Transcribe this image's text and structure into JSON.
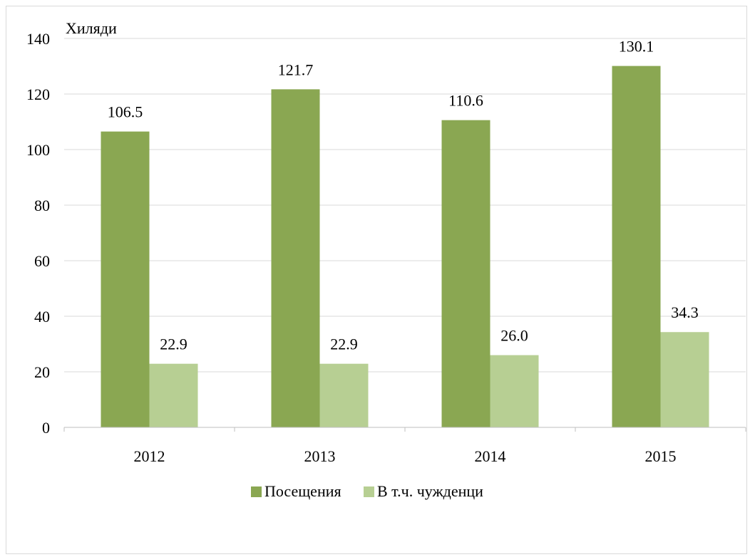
{
  "chart_data": {
    "type": "bar",
    "title": "",
    "ylabel": "Хиляди",
    "xlabel": "",
    "categories": [
      "2012",
      "2013",
      "2014",
      "2015"
    ],
    "ylim": [
      0,
      140
    ],
    "yticks": [
      0,
      20,
      40,
      60,
      80,
      100,
      120,
      140
    ],
    "grid": true,
    "legend_position": "bottom",
    "series": [
      {
        "name": "Посещения",
        "values": [
          106.5,
          121.7,
          110.6,
          130.1
        ],
        "color": "#8aa752"
      },
      {
        "name": "В т.ч. чужденци",
        "values": [
          22.9,
          22.9,
          26.0,
          34.3
        ],
        "color": "#b7cf93"
      }
    ],
    "data_labels": [
      [
        "106.5",
        "121.7",
        "110.6",
        "130.1"
      ],
      [
        "22.9",
        "22.9",
        "26.0",
        "34.3"
      ]
    ],
    "colors": {
      "gridline": "#d9d9d9",
      "axis": "#bfbfbf",
      "frame": "#d9d9d9"
    }
  }
}
